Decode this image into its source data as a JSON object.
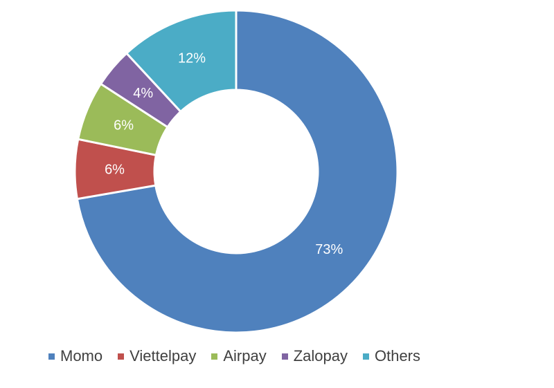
{
  "chart_data": {
    "type": "pie",
    "style": "donut",
    "title": "",
    "categories": [
      "Momo",
      "Viettelpay",
      "Airpay",
      "Zalopay",
      "Others"
    ],
    "values": [
      73,
      6,
      6,
      4,
      12
    ],
    "labels": [
      "73%",
      "6%",
      "6%",
      "4%",
      "12%"
    ],
    "unit": "%",
    "colors": [
      "#4f81bd",
      "#c0504d",
      "#9bbb59",
      "#8064a2",
      "#4bacc6"
    ],
    "legend_position": "bottom",
    "direction": "clockwise",
    "start": "top"
  }
}
